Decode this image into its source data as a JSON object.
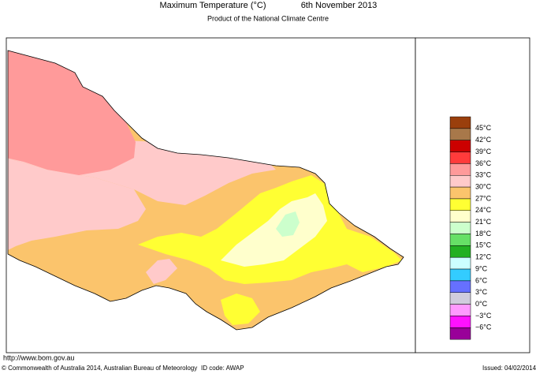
{
  "header": {
    "title": "Maximum Temperature (°C)",
    "date": "6th November 2013",
    "subtitle": "Product of the National Climate Centre"
  },
  "legend": {
    "colors": [
      "#9a3f0c",
      "#a8784a",
      "#cc0000",
      "#ff3b3b",
      "#ff9a9a",
      "#ffcaca",
      "#fbc46c",
      "#ffff33",
      "#ffffcc",
      "#ccffcc",
      "#66e066",
      "#22b022",
      "#ccffff",
      "#33ccff",
      "#6670ff",
      "#d0ccdd",
      "#ff99ff",
      "#ff11ff",
      "#990099"
    ],
    "labels": [
      "45°C",
      "42°C",
      "39°C",
      "36°C",
      "33°C",
      "30°C",
      "27°C",
      "24°C",
      "21°C",
      "18°C",
      "15°C",
      "12°C",
      "9°C",
      "6°C",
      "3°C",
      "0°C",
      "−3°C",
      "−6°C"
    ]
  },
  "footer": {
    "url": "http://www.bom.gov.au",
    "copyright": "© Commonwealth of Australia 2014, Australian Bureau of Meteorology",
    "id_code": "ID code: AWAP",
    "issued": "Issued: 04/02/2014"
  }
}
